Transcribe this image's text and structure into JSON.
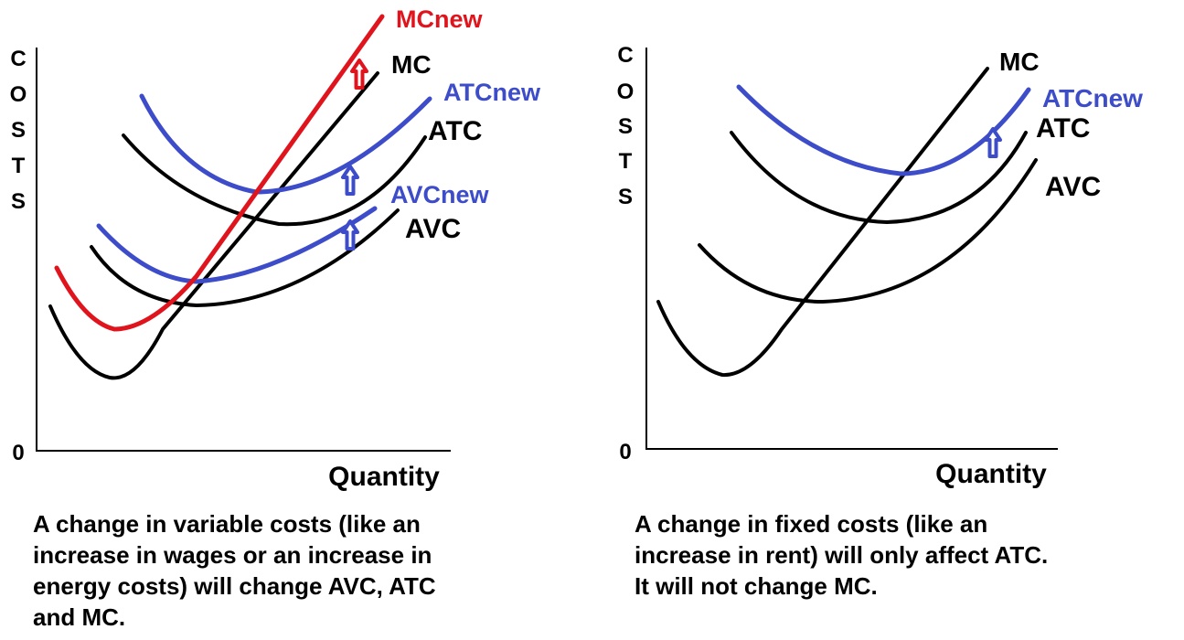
{
  "colors": {
    "baseline": "#000000",
    "increase_variable": "#e0141c",
    "increase_cost": "#3d4cc9",
    "axis": "#000000"
  },
  "left_diagram": {
    "y_axis_letters": [
      "C",
      "O",
      "S",
      "T",
      "S"
    ],
    "origin_label": "0",
    "x_label": "Quantity",
    "curve_labels": {
      "mc_new": "MCnew",
      "mc": "MC",
      "atc_new": "ATCnew",
      "atc": "ATC",
      "avc_new": "AVCnew",
      "avc": "AVC"
    },
    "shift_arrows": [
      "arrow-up-icon",
      "arrow-up-icon",
      "arrow-up-icon"
    ],
    "caption_lines": [
      "A change in variable costs (like an",
      "increase in wages or an increase in",
      "energy costs) will change AVC, ATC",
      "and MC."
    ]
  },
  "right_diagram": {
    "y_axis_letters": [
      "C",
      "O",
      "S",
      "T",
      "S"
    ],
    "origin_label": "0",
    "x_label": "Quantity",
    "curve_labels": {
      "mc": "MC",
      "atc_new": "ATCnew",
      "atc": "ATC",
      "avc": "AVC"
    },
    "shift_arrows": [
      "arrow-up-icon"
    ],
    "caption_lines": [
      "A change in fixed costs (like an",
      "increase in rent) will only affect ATC.",
      "It will not change MC."
    ]
  }
}
